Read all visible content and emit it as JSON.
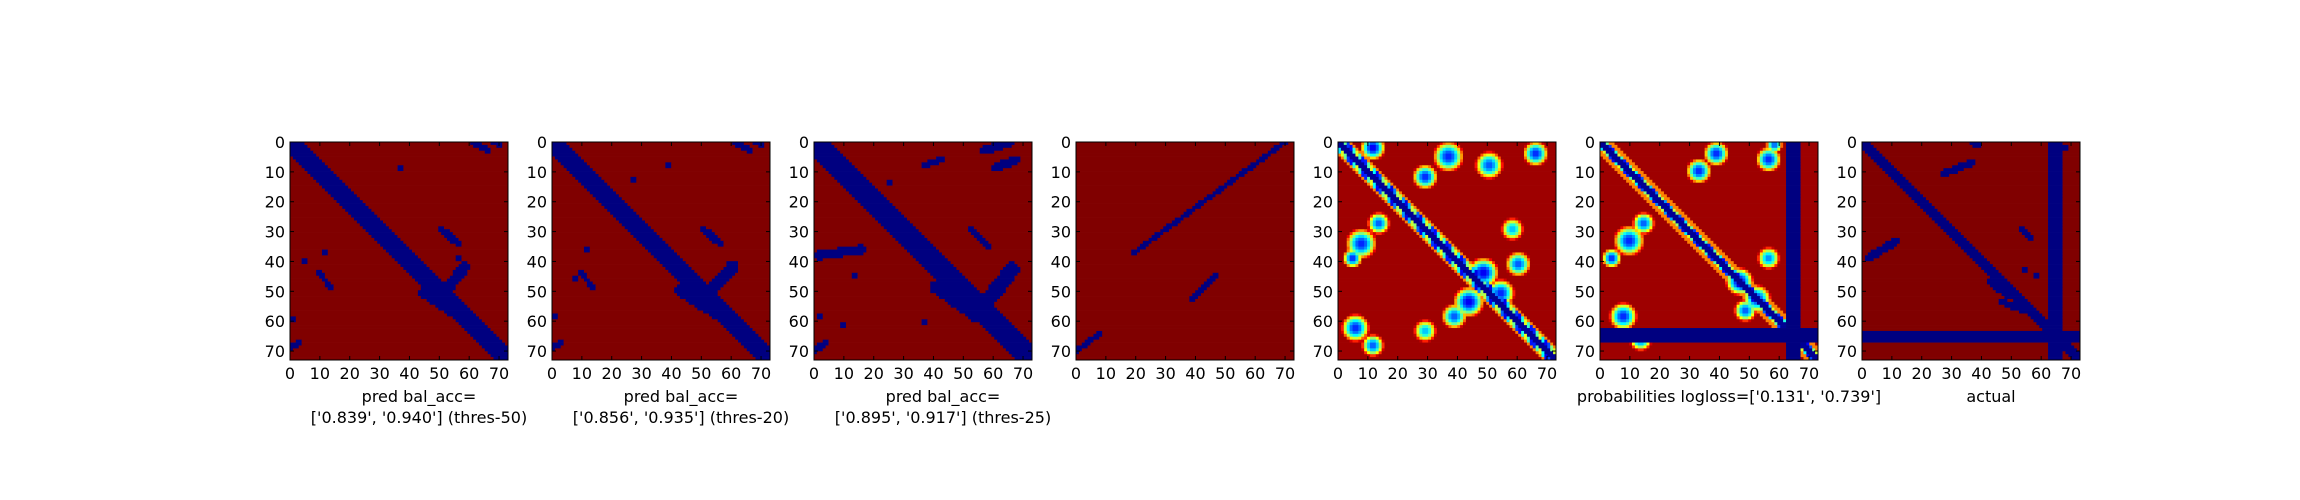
{
  "chart_data": {
    "type": "heatmap",
    "colormap": "jet",
    "grid": false,
    "xticks": [
      0,
      10,
      20,
      30,
      40,
      50,
      60,
      70
    ],
    "yticks": [
      0,
      10,
      20,
      30,
      40,
      50,
      60,
      70
    ],
    "xlim": [
      0,
      73
    ],
    "ylim": [
      73,
      0
    ],
    "panels": [
      {
        "xlabel": "pred bal_acc=\n['0.839', '0.940'] (thres-50)",
        "kind": "binary",
        "features": [
          {
            "type": "diagonal",
            "offset": 0,
            "half_width": 3.2
          },
          {
            "type": "segment",
            "from": [
              63,
              0
            ],
            "to": [
              68,
              3
            ],
            "width": 1.2
          },
          {
            "type": "segment",
            "from": [
              70,
              0
            ],
            "to": [
              72,
              1
            ],
            "width": 1.0
          },
          {
            "type": "segment",
            "from": [
              52,
              30
            ],
            "to": [
              58,
              35
            ],
            "width": 1.3
          },
          {
            "type": "segment",
            "from": [
              10,
              45
            ],
            "to": [
              14,
              50
            ],
            "width": 1.0
          },
          {
            "type": "segment",
            "from": [
              53,
              52
            ],
            "to": [
              60,
              43
            ],
            "width": 2.0
          },
          {
            "type": "segment",
            "from": [
              46,
              52
            ],
            "to": [
              58,
              60
            ],
            "width": 1.8
          },
          {
            "type": "segment",
            "from": [
              0,
              71
            ],
            "to": [
              3,
              69
            ],
            "width": 1.0
          },
          {
            "type": "blob",
            "center": [
              12,
              38
            ],
            "radius": 1.2
          },
          {
            "type": "blob",
            "center": [
              5,
              41
            ],
            "radius": 1.0
          },
          {
            "type": "blob",
            "center": [
              38,
              9
            ],
            "radius": 1.0
          },
          {
            "type": "blob",
            "center": [
              1,
              61
            ],
            "radius": 1.1
          },
          {
            "type": "blob",
            "center": [
              58,
              40
            ],
            "radius": 1.2
          }
        ]
      },
      {
        "xlabel": "pred bal_acc=\n['0.856', '0.935'] (thres-20)",
        "kind": "binary",
        "features": [
          {
            "type": "diagonal",
            "offset": 0,
            "half_width": 3.4
          },
          {
            "type": "segment",
            "from": [
              63,
              0
            ],
            "to": [
              68,
              3
            ],
            "width": 1.2
          },
          {
            "type": "segment",
            "from": [
              70,
              0
            ],
            "to": [
              72,
              1
            ],
            "width": 1.0
          },
          {
            "type": "segment",
            "from": [
              52,
              30
            ],
            "to": [
              58,
              35
            ],
            "width": 1.3
          },
          {
            "type": "segment",
            "from": [
              10,
              45
            ],
            "to": [
              14,
              50
            ],
            "width": 1.0
          },
          {
            "type": "segment",
            "from": [
              55,
              51
            ],
            "to": [
              62,
              43
            ],
            "width": 2.2
          },
          {
            "type": "segment",
            "from": [
              44,
              51
            ],
            "to": [
              58,
              60
            ],
            "width": 2.0
          },
          {
            "type": "segment",
            "from": [
              0,
              71
            ],
            "to": [
              3,
              69
            ],
            "width": 1.0
          },
          {
            "type": "blob",
            "center": [
              12,
              37
            ],
            "radius": 1.5
          },
          {
            "type": "blob",
            "center": [
              8,
              47
            ],
            "radius": 1.2
          },
          {
            "type": "blob",
            "center": [
              28,
              13
            ],
            "radius": 1.4
          },
          {
            "type": "blob",
            "center": [
              40,
              8
            ],
            "radius": 1.0
          },
          {
            "type": "blob",
            "center": [
              1,
              60
            ],
            "radius": 1.2
          },
          {
            "type": "blob",
            "center": [
              48,
              54
            ],
            "radius": 1.6
          }
        ]
      },
      {
        "xlabel": "pred bal_acc=\n['0.895', '0.917'] (thres-25)",
        "kind": "binary",
        "features": [
          {
            "type": "diagonal",
            "offset": 0,
            "half_width": 3.6
          },
          {
            "type": "segment",
            "from": [
              58,
              3
            ],
            "to": [
              68,
              0
            ],
            "width": 1.5
          },
          {
            "type": "segment",
            "from": [
              62,
              9
            ],
            "to": [
              70,
              6
            ],
            "width": 1.5
          },
          {
            "type": "segment",
            "from": [
              38,
              8
            ],
            "to": [
              44,
              6
            ],
            "width": 1.2
          },
          {
            "type": "segment",
            "from": [
              54,
              30
            ],
            "to": [
              60,
              36
            ],
            "width": 1.3
          },
          {
            "type": "segment",
            "from": [
              2,
              39
            ],
            "to": [
              16,
              37
            ],
            "width": 1.6
          },
          {
            "type": "segment",
            "from": [
              58,
              57
            ],
            "to": [
              68,
              44
            ],
            "width": 2.6
          },
          {
            "type": "segment",
            "from": [
              42,
              50
            ],
            "to": [
              56,
              60
            ],
            "width": 2.2
          },
          {
            "type": "segment",
            "from": [
              0,
              72
            ],
            "to": [
              4,
              69
            ],
            "width": 1.2
          },
          {
            "type": "blob",
            "center": [
              26,
              14
            ],
            "radius": 1.5
          },
          {
            "type": "blob",
            "center": [
              14,
              46
            ],
            "radius": 1.3
          },
          {
            "type": "blob",
            "center": [
              2,
              60
            ],
            "radius": 1.3
          },
          {
            "type": "blob",
            "center": [
              38,
              62
            ],
            "radius": 1.2
          },
          {
            "type": "blob",
            "center": [
              58,
              60
            ],
            "radius": 2.0
          },
          {
            "type": "blob",
            "center": [
              10,
              63
            ],
            "radius": 1.1
          }
        ]
      },
      {
        "xlabel": "",
        "kind": "binary",
        "features": [
          {
            "type": "segment",
            "from": [
              20,
              38
            ],
            "to": [
              72,
              0
            ],
            "width": 0.9
          },
          {
            "type": "segment",
            "from": [
              40,
              54
            ],
            "to": [
              48,
              46
            ],
            "width": 0.9
          },
          {
            "type": "segment",
            "from": [
              0,
              72
            ],
            "to": [
              8,
              66
            ],
            "width": 0.9
          }
        ]
      },
      {
        "xlabel": "",
        "kind": "probability",
        "features": [
          {
            "type": "diagonal",
            "offset": 0,
            "half_width": 3.2,
            "pattern": "ring"
          },
          {
            "type": "blob",
            "center": [
              12,
              2
            ],
            "radius": 4.5,
            "peak": 0.9
          },
          {
            "type": "blob",
            "center": [
              38,
              5
            ],
            "radius": 5.5,
            "peak": 0.85
          },
          {
            "type": "blob",
            "center": [
              52,
              8
            ],
            "radius": 5.0,
            "peak": 0.8
          },
          {
            "type": "blob",
            "center": [
              68,
              4
            ],
            "radius": 4.5,
            "peak": 0.85
          },
          {
            "type": "blob",
            "center": [
              30,
              12
            ],
            "radius": 4.5,
            "peak": 0.85
          },
          {
            "type": "blob",
            "center": [
              8,
              35
            ],
            "radius": 5.5,
            "peak": 0.85
          },
          {
            "type": "blob",
            "center": [
              14,
              28
            ],
            "radius": 4.0,
            "peak": 0.8
          },
          {
            "type": "blob",
            "center": [
              5,
              40
            ],
            "radius": 3.5,
            "peak": 0.85
          },
          {
            "type": "blob",
            "center": [
              50,
              45
            ],
            "radius": 5.5,
            "peak": 0.9
          },
          {
            "type": "blob",
            "center": [
              45,
              55
            ],
            "radius": 5.5,
            "peak": 0.9
          },
          {
            "type": "blob",
            "center": [
              56,
              52
            ],
            "radius": 5.0,
            "peak": 0.85
          },
          {
            "type": "blob",
            "center": [
              62,
              42
            ],
            "radius": 4.5,
            "peak": 0.8
          },
          {
            "type": "blob",
            "center": [
              40,
              60
            ],
            "radius": 4.5,
            "peak": 0.8
          },
          {
            "type": "blob",
            "center": [
              6,
              64
            ],
            "radius": 5.0,
            "peak": 0.85
          },
          {
            "type": "blob",
            "center": [
              12,
              70
            ],
            "radius": 4.0,
            "peak": 0.8
          },
          {
            "type": "blob",
            "center": [
              30,
              65
            ],
            "radius": 4.0,
            "peak": 0.7
          },
          {
            "type": "blob",
            "center": [
              60,
              30
            ],
            "radius": 4.0,
            "peak": 0.7
          }
        ]
      },
      {
        "xlabel": "probabilities logloss=['0.131', '0.739']",
        "kind": "probability",
        "features": [
          {
            "type": "diagonal",
            "offset": 0,
            "half_width": 3.0,
            "pattern": "ring"
          },
          {
            "type": "band_vertical",
            "from": 64,
            "to": 69
          },
          {
            "type": "band_horizontal",
            "from": 64,
            "to": 69
          },
          {
            "type": "blob",
            "center": [
              40,
              4
            ],
            "radius": 4.5,
            "peak": 0.85
          },
          {
            "type": "blob",
            "center": [
              58,
              6
            ],
            "radius": 4.5,
            "peak": 0.85
          },
          {
            "type": "blob",
            "center": [
              60,
              1
            ],
            "radius": 3.0,
            "peak": 0.8
          },
          {
            "type": "blob",
            "center": [
              34,
              10
            ],
            "radius": 4.5,
            "peak": 0.85
          },
          {
            "type": "blob",
            "center": [
              10,
              34
            ],
            "radius": 5.5,
            "peak": 0.85
          },
          {
            "type": "blob",
            "center": [
              15,
              28
            ],
            "radius": 4.0,
            "peak": 0.8
          },
          {
            "type": "blob",
            "center": [
              4,
              40
            ],
            "radius": 3.5,
            "peak": 0.85
          },
          {
            "type": "blob",
            "center": [
              48,
              48
            ],
            "radius": 5.0,
            "peak": 0.9
          },
          {
            "type": "blob",
            "center": [
              54,
              54
            ],
            "radius": 5.0,
            "peak": 0.85
          },
          {
            "type": "blob",
            "center": [
              50,
              58
            ],
            "radius": 4.0,
            "peak": 0.8
          },
          {
            "type": "blob",
            "center": [
              8,
              60
            ],
            "radius": 5.0,
            "peak": 0.85
          },
          {
            "type": "blob",
            "center": [
              14,
              68
            ],
            "radius": 4.0,
            "peak": 0.8
          },
          {
            "type": "blob",
            "center": [
              58,
              40
            ],
            "radius": 4.0,
            "peak": 0.75
          }
        ]
      },
      {
        "xlabel": "actual",
        "kind": "binary",
        "features": [
          {
            "type": "diagonal",
            "offset": 0,
            "half_width": 2.0
          },
          {
            "type": "band_vertical",
            "from": 64,
            "to": 69
          },
          {
            "type": "band_horizontal",
            "from": 65,
            "to": 69
          },
          {
            "type": "segment",
            "from": [
              38,
              0
            ],
            "to": [
              40,
              1
            ],
            "width": 1.2
          },
          {
            "type": "segment",
            "from": [
              28,
              11
            ],
            "to": [
              38,
              7
            ],
            "width": 1.3
          },
          {
            "type": "segment",
            "from": [
              55,
              30
            ],
            "to": [
              58,
              33
            ],
            "width": 1.0
          },
          {
            "type": "segment",
            "from": [
              2,
              40
            ],
            "to": [
              12,
              34
            ],
            "width": 1.5
          },
          {
            "type": "segment",
            "from": [
              44,
              48
            ],
            "to": [
              50,
              53
            ],
            "width": 1.2
          },
          {
            "type": "segment",
            "from": [
              48,
              55
            ],
            "to": [
              56,
              58
            ],
            "width": 1.2
          },
          {
            "type": "blob",
            "center": [
              70,
              2
            ],
            "radius": 1.2
          },
          {
            "type": "blob",
            "center": [
              6,
              66
            ],
            "radius": 1.0
          },
          {
            "type": "blob",
            "center": [
              56,
              44
            ],
            "radius": 1.1
          },
          {
            "type": "blob",
            "center": [
              60,
              46
            ],
            "radius": 1.0
          }
        ]
      }
    ]
  }
}
